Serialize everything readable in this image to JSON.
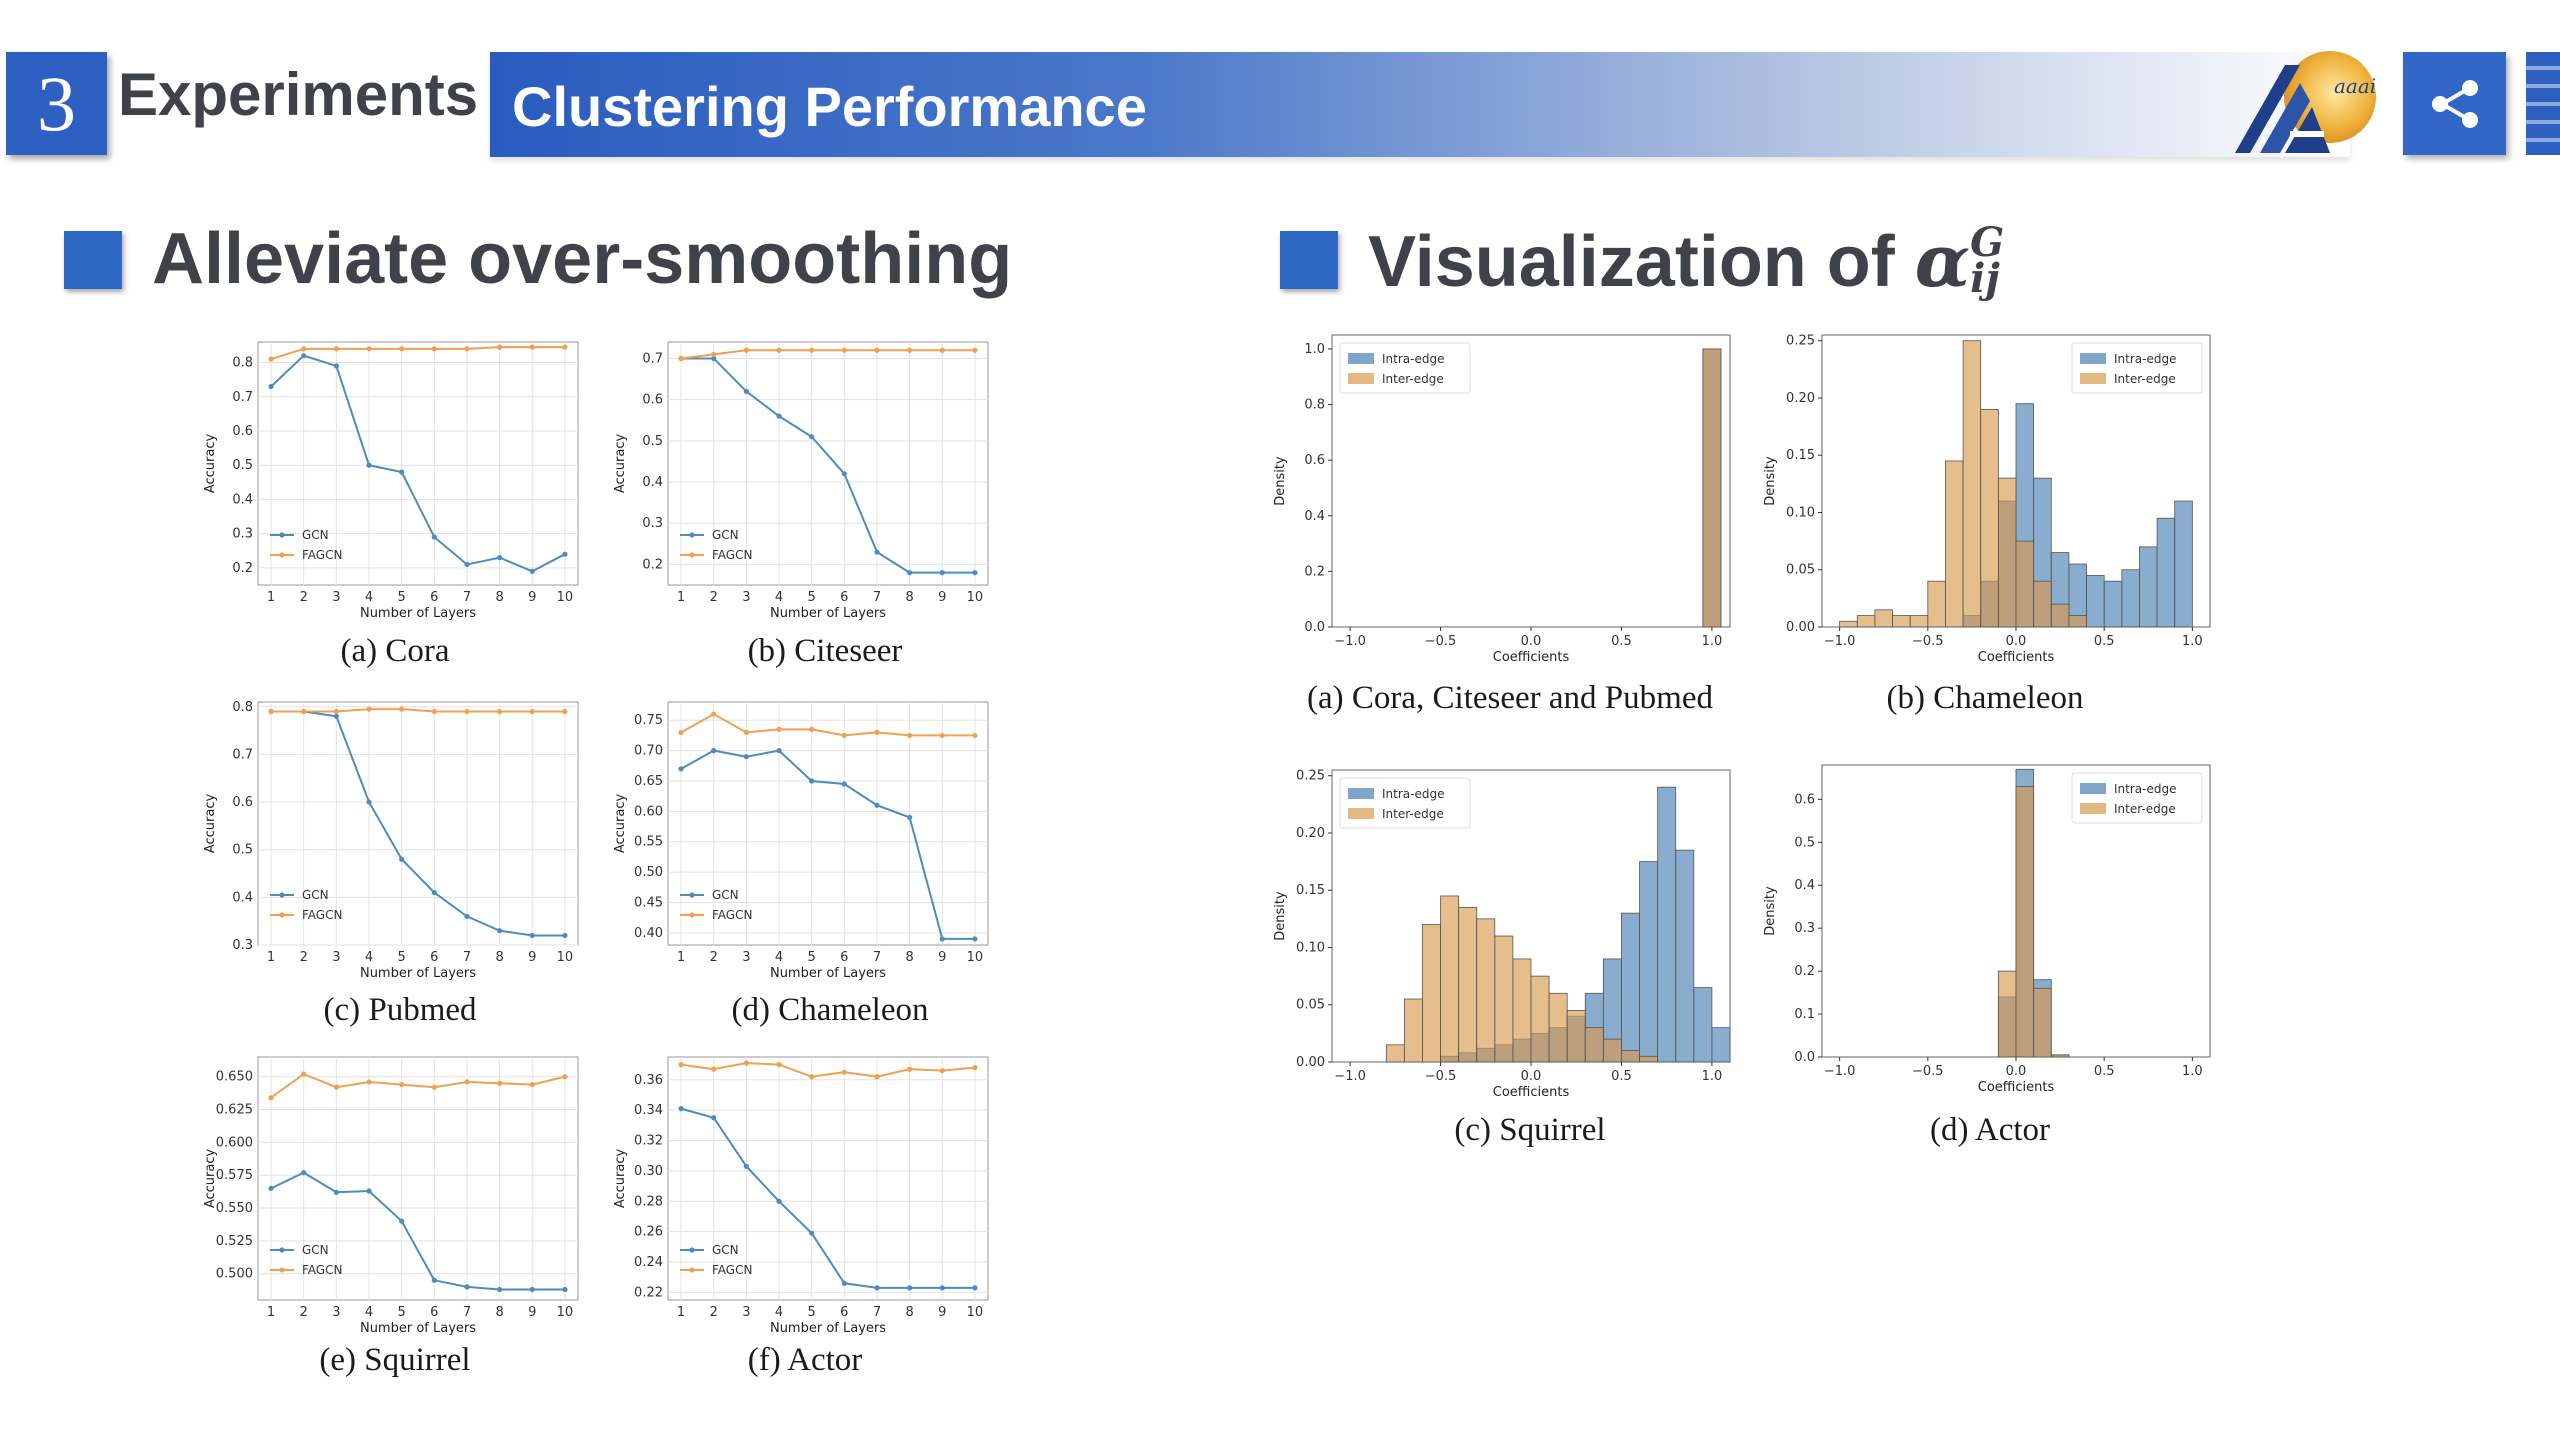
{
  "header": {
    "section_number": "3",
    "section_label": "Experiments",
    "title": "Clustering Performance",
    "logo_text": "aaai",
    "colors": {
      "accent": "#2d60c0",
      "heading": "#3f4248"
    },
    "icons": {
      "share": "share-icon",
      "menu": "menu-icon"
    }
  },
  "left_section": {
    "heading": "Alleviate over-smoothing"
  },
  "right_section": {
    "heading_prefix": "Visualization of ",
    "symbol_base": "α",
    "symbol_sup": "G",
    "symbol_sub": "ij"
  },
  "chart_data": [
    {
      "id": "acc_cora",
      "type": "line",
      "caption": "(a) Cora",
      "xlabel": "Number of Layers",
      "ylabel": "Accuracy",
      "x": [
        1,
        2,
        3,
        4,
        5,
        6,
        7,
        8,
        9,
        10
      ],
      "ylim": [
        0.15,
        0.86
      ],
      "yticks": [
        0.2,
        0.3,
        0.4,
        0.5,
        0.6,
        0.7,
        0.8
      ],
      "ytick_labels": [
        "0.2",
        "0.3",
        "0.4",
        "0.5",
        "0.6",
        "0.7",
        "0.8"
      ],
      "series": [
        {
          "name": "GCN",
          "color": "#4c8cbf",
          "values": [
            0.73,
            0.82,
            0.79,
            0.5,
            0.48,
            0.29,
            0.21,
            0.23,
            0.19,
            0.24
          ]
        },
        {
          "name": "FAGCN",
          "color": "#f0a050",
          "values": [
            0.81,
            0.84,
            0.84,
            0.84,
            0.84,
            0.84,
            0.84,
            0.845,
            0.845,
            0.845
          ]
        }
      ]
    },
    {
      "id": "acc_citeseer",
      "type": "line",
      "caption": "(b) Citeseer",
      "xlabel": "Number of Layers",
      "ylabel": "Accuracy",
      "x": [
        1,
        2,
        3,
        4,
        5,
        6,
        7,
        8,
        9,
        10
      ],
      "ylim": [
        0.15,
        0.74
      ],
      "yticks": [
        0.2,
        0.3,
        0.4,
        0.5,
        0.6,
        0.7
      ],
      "ytick_labels": [
        "0.2",
        "0.3",
        "0.4",
        "0.5",
        "0.6",
        "0.7"
      ],
      "series": [
        {
          "name": "GCN",
          "color": "#4c8cbf",
          "values": [
            0.7,
            0.7,
            0.62,
            0.56,
            0.51,
            0.42,
            0.23,
            0.18,
            0.18,
            0.18
          ]
        },
        {
          "name": "FAGCN",
          "color": "#f0a050",
          "values": [
            0.7,
            0.71,
            0.72,
            0.72,
            0.72,
            0.72,
            0.72,
            0.72,
            0.72,
            0.72
          ]
        }
      ]
    },
    {
      "id": "acc_pubmed",
      "type": "line",
      "caption": "(c) Pubmed",
      "xlabel": "Number of Layers",
      "ylabel": "Accuracy",
      "x": [
        1,
        2,
        3,
        4,
        5,
        6,
        7,
        8,
        9,
        10
      ],
      "ylim": [
        0.3,
        0.81
      ],
      "yticks": [
        0.3,
        0.4,
        0.5,
        0.6,
        0.7,
        0.8
      ],
      "ytick_labels": [
        "0.3",
        "0.4",
        "0.5",
        "0.6",
        "0.7",
        "0.8"
      ],
      "series": [
        {
          "name": "GCN",
          "color": "#4c8cbf",
          "values": [
            0.79,
            0.79,
            0.78,
            0.6,
            0.48,
            0.41,
            0.36,
            0.33,
            0.32,
            0.32
          ]
        },
        {
          "name": "FAGCN",
          "color": "#f0a050",
          "values": [
            0.79,
            0.79,
            0.79,
            0.795,
            0.795,
            0.79,
            0.79,
            0.79,
            0.79,
            0.79
          ]
        }
      ]
    },
    {
      "id": "acc_chameleon",
      "type": "line",
      "caption": "(d) Chameleon",
      "xlabel": "Number of Layers",
      "ylabel": "Accuracy",
      "x": [
        1,
        2,
        3,
        4,
        5,
        6,
        7,
        8,
        9,
        10
      ],
      "ylim": [
        0.38,
        0.78
      ],
      "yticks": [
        0.4,
        0.45,
        0.5,
        0.55,
        0.6,
        0.65,
        0.7,
        0.75
      ],
      "ytick_labels": [
        "0.40",
        "0.45",
        "0.50",
        "0.55",
        "0.60",
        "0.65",
        "0.70",
        "0.75"
      ],
      "series": [
        {
          "name": "GCN",
          "color": "#4c8cbf",
          "values": [
            0.67,
            0.7,
            0.69,
            0.7,
            0.65,
            0.645,
            0.61,
            0.59,
            0.39,
            0.39
          ]
        },
        {
          "name": "FAGCN",
          "color": "#f0a050",
          "values": [
            0.73,
            0.76,
            0.73,
            0.735,
            0.735,
            0.725,
            0.73,
            0.725,
            0.725,
            0.725
          ]
        }
      ]
    },
    {
      "id": "acc_squirrel",
      "type": "line",
      "caption": "(e) Squirrel",
      "xlabel": "Number of Layers",
      "ylabel": "Accuracy",
      "x": [
        1,
        2,
        3,
        4,
        5,
        6,
        7,
        8,
        9,
        10
      ],
      "ylim": [
        0.48,
        0.665
      ],
      "yticks": [
        0.5,
        0.525,
        0.55,
        0.575,
        0.6,
        0.625,
        0.65
      ],
      "ytick_labels": [
        "0.500",
        "0.525",
        "0.550",
        "0.575",
        "0.600",
        "0.625",
        "0.650"
      ],
      "series": [
        {
          "name": "GCN",
          "color": "#4c8cbf",
          "values": [
            0.565,
            0.577,
            0.562,
            0.563,
            0.54,
            0.495,
            0.49,
            0.488,
            0.488,
            0.488
          ]
        },
        {
          "name": "FAGCN",
          "color": "#f0a050",
          "values": [
            0.634,
            0.652,
            0.642,
            0.646,
            0.644,
            0.642,
            0.646,
            0.645,
            0.644,
            0.65
          ]
        }
      ]
    },
    {
      "id": "acc_actor",
      "type": "line",
      "caption": "(f) Actor",
      "xlabel": "Number of Layers",
      "ylabel": "Accuracy",
      "x": [
        1,
        2,
        3,
        4,
        5,
        6,
        7,
        8,
        9,
        10
      ],
      "ylim": [
        0.215,
        0.375
      ],
      "yticks": [
        0.22,
        0.24,
        0.26,
        0.28,
        0.3,
        0.32,
        0.34,
        0.36
      ],
      "ytick_labels": [
        "0.22",
        "0.24",
        "0.26",
        "0.28",
        "0.30",
        "0.32",
        "0.34",
        "0.36"
      ],
      "series": [
        {
          "name": "GCN",
          "color": "#4c8cbf",
          "values": [
            0.341,
            0.335,
            0.303,
            0.28,
            0.259,
            0.226,
            0.223,
            0.223,
            0.223,
            0.223
          ]
        },
        {
          "name": "FAGCN",
          "color": "#f0a050",
          "values": [
            0.37,
            0.367,
            0.371,
            0.37,
            0.362,
            0.365,
            0.362,
            0.367,
            0.366,
            0.368
          ]
        }
      ]
    },
    {
      "id": "hist_cora",
      "type": "histogram",
      "caption": "(a) Cora, Citeseer and Pubmed",
      "xlabel": "Coefficients",
      "ylabel": "Density",
      "xlim": [
        -1.1,
        1.1
      ],
      "ylim": [
        0,
        1.05
      ],
      "xticks": [
        -1.0,
        -0.5,
        0.0,
        0.5,
        1.0
      ],
      "xtick_labels": [
        "−1.0",
        "−0.5",
        "0.0",
        "0.5",
        "1.0"
      ],
      "yticks": [
        0.0,
        0.2,
        0.4,
        0.6,
        0.8,
        1.0
      ],
      "ytick_labels": [
        "0.0",
        "0.2",
        "0.4",
        "0.6",
        "0.8",
        "1.0"
      ],
      "series": [
        {
          "name": "Intra-edge",
          "color": "#4a7fb5",
          "bins": [
            [
              0.95,
              1.05,
              1.0
            ]
          ]
        },
        {
          "name": "Inter-edge",
          "color": "#d99a4e",
          "bins": [
            [
              0.95,
              1.05,
              1.0
            ]
          ]
        }
      ]
    },
    {
      "id": "hist_chameleon",
      "type": "histogram",
      "caption": "(b) Chameleon",
      "xlabel": "Coefficients",
      "ylabel": "Density",
      "xlim": [
        -1.1,
        1.1
      ],
      "ylim": [
        0,
        0.255
      ],
      "xticks": [
        -1.0,
        -0.5,
        0.0,
        0.5,
        1.0
      ],
      "xtick_labels": [
        "−1.0",
        "−0.5",
        "0.0",
        "0.5",
        "1.0"
      ],
      "yticks": [
        0.0,
        0.05,
        0.1,
        0.15,
        0.2,
        0.25
      ],
      "ytick_labels": [
        "0.00",
        "0.05",
        "0.10",
        "0.15",
        "0.20",
        "0.25"
      ],
      "series": [
        {
          "name": "Intra-edge",
          "color": "#4a7fb5",
          "bins": [
            [
              -0.3,
              -0.2,
              0.01
            ],
            [
              -0.2,
              -0.1,
              0.04
            ],
            [
              -0.1,
              0.0,
              0.11
            ],
            [
              0.0,
              0.1,
              0.195
            ],
            [
              0.1,
              0.2,
              0.13
            ],
            [
              0.2,
              0.3,
              0.065
            ],
            [
              0.3,
              0.4,
              0.055
            ],
            [
              0.4,
              0.5,
              0.045
            ],
            [
              0.5,
              0.6,
              0.04
            ],
            [
              0.6,
              0.7,
              0.05
            ],
            [
              0.7,
              0.8,
              0.07
            ],
            [
              0.8,
              0.9,
              0.095
            ],
            [
              0.9,
              1.0,
              0.11
            ]
          ]
        },
        {
          "name": "Inter-edge",
          "color": "#d99a4e",
          "bins": [
            [
              -1.0,
              -0.9,
              0.005
            ],
            [
              -0.9,
              -0.8,
              0.01
            ],
            [
              -0.8,
              -0.7,
              0.015
            ],
            [
              -0.7,
              -0.6,
              0.01
            ],
            [
              -0.6,
              -0.5,
              0.01
            ],
            [
              -0.5,
              -0.4,
              0.04
            ],
            [
              -0.4,
              -0.3,
              0.145
            ],
            [
              -0.3,
              -0.2,
              0.25
            ],
            [
              -0.2,
              -0.1,
              0.19
            ],
            [
              -0.1,
              0.0,
              0.13
            ],
            [
              0.0,
              0.1,
              0.075
            ],
            [
              0.1,
              0.2,
              0.04
            ],
            [
              0.2,
              0.3,
              0.02
            ],
            [
              0.3,
              0.4,
              0.01
            ]
          ]
        }
      ]
    },
    {
      "id": "hist_squirrel",
      "type": "histogram",
      "caption": "(c) Squirrel",
      "xlabel": "Coefficients",
      "ylabel": "Density",
      "xlim": [
        -1.1,
        1.1
      ],
      "ylim": [
        0,
        0.255
      ],
      "xticks": [
        -1.0,
        -0.5,
        0.0,
        0.5,
        1.0
      ],
      "xtick_labels": [
        "−1.0",
        "−0.5",
        "0.0",
        "0.5",
        "1.0"
      ],
      "yticks": [
        0.0,
        0.05,
        0.1,
        0.15,
        0.2,
        0.25
      ],
      "ytick_labels": [
        "0.00",
        "0.05",
        "0.10",
        "0.15",
        "0.20",
        "0.25"
      ],
      "series": [
        {
          "name": "Intra-edge",
          "color": "#4a7fb5",
          "bins": [
            [
              -0.5,
              -0.4,
              0.005
            ],
            [
              -0.4,
              -0.3,
              0.008
            ],
            [
              -0.3,
              -0.2,
              0.012
            ],
            [
              -0.2,
              -0.1,
              0.015
            ],
            [
              -0.1,
              0.0,
              0.02
            ],
            [
              0.0,
              0.1,
              0.025
            ],
            [
              0.1,
              0.2,
              0.03
            ],
            [
              0.2,
              0.3,
              0.04
            ],
            [
              0.3,
              0.4,
              0.06
            ],
            [
              0.4,
              0.5,
              0.09
            ],
            [
              0.5,
              0.6,
              0.13
            ],
            [
              0.6,
              0.7,
              0.175
            ],
            [
              0.7,
              0.8,
              0.24
            ],
            [
              0.8,
              0.9,
              0.185
            ],
            [
              0.9,
              1.0,
              0.065
            ],
            [
              1.0,
              1.1,
              0.03
            ]
          ]
        },
        {
          "name": "Inter-edge",
          "color": "#d99a4e",
          "bins": [
            [
              -0.8,
              -0.7,
              0.015
            ],
            [
              -0.7,
              -0.6,
              0.055
            ],
            [
              -0.6,
              -0.5,
              0.12
            ],
            [
              -0.5,
              -0.4,
              0.145
            ],
            [
              -0.4,
              -0.3,
              0.135
            ],
            [
              -0.3,
              -0.2,
              0.125
            ],
            [
              -0.2,
              -0.1,
              0.11
            ],
            [
              -0.1,
              0.0,
              0.09
            ],
            [
              0.0,
              0.1,
              0.075
            ],
            [
              0.1,
              0.2,
              0.06
            ],
            [
              0.2,
              0.3,
              0.045
            ],
            [
              0.3,
              0.4,
              0.03
            ],
            [
              0.4,
              0.5,
              0.02
            ],
            [
              0.5,
              0.6,
              0.01
            ],
            [
              0.6,
              0.7,
              0.005
            ]
          ]
        }
      ]
    },
    {
      "id": "hist_actor",
      "type": "histogram",
      "caption": "(d) Actor",
      "xlabel": "Coefficients",
      "ylabel": "Density",
      "xlim": [
        -1.1,
        1.1
      ],
      "ylim": [
        0,
        0.68
      ],
      "xticks": [
        -1.0,
        -0.5,
        0.0,
        0.5,
        1.0
      ],
      "xtick_labels": [
        "−1.0",
        "−0.5",
        "0.0",
        "0.5",
        "1.0"
      ],
      "yticks": [
        0.0,
        0.1,
        0.2,
        0.3,
        0.4,
        0.5,
        0.6
      ],
      "ytick_labels": [
        "0.0",
        "0.1",
        "0.2",
        "0.3",
        "0.4",
        "0.5",
        "0.6"
      ],
      "series": [
        {
          "name": "Intra-edge",
          "color": "#4a7fb5",
          "bins": [
            [
              -0.1,
              0.0,
              0.14
            ],
            [
              0.0,
              0.1,
              0.67
            ],
            [
              0.1,
              0.2,
              0.18
            ],
            [
              0.2,
              0.3,
              0.005
            ]
          ]
        },
        {
          "name": "Inter-edge",
          "color": "#d99a4e",
          "bins": [
            [
              -0.1,
              0.0,
              0.2
            ],
            [
              0.0,
              0.1,
              0.63
            ],
            [
              0.1,
              0.2,
              0.16
            ],
            [
              0.2,
              0.3,
              0.005
            ]
          ]
        }
      ]
    }
  ]
}
